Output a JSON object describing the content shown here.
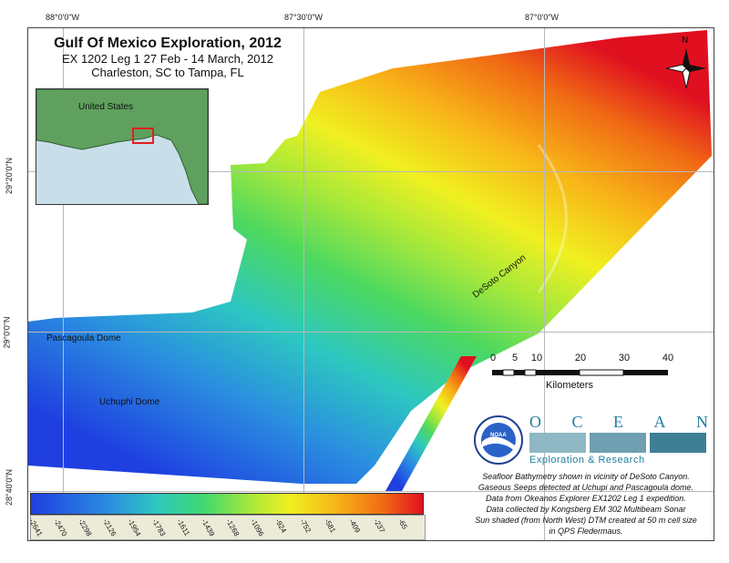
{
  "map": {
    "title": "Gulf Of Mexico Exploration, 2012",
    "subtitle_line1": "EX 1202 Leg 1 27 Feb - 14 March, 2012",
    "subtitle_line2": "Charleston, SC to Tampa, FL",
    "grid_labels_top": [
      "88°0'0\"W",
      "87°30'0\"W",
      "87°0'0\"W"
    ],
    "grid_labels_left": [
      "29°20'0\"N",
      "29°0'0\"N",
      "28°40'0\"N"
    ],
    "north_label": "N",
    "inset_label": "United States",
    "places": {
      "pascagoula": "Pascagoula Dome",
      "uchuphi": "Uchuphi Dome",
      "canyon": "DeSoto Canyon"
    },
    "scale": {
      "ticks": [
        "0",
        "5",
        "10",
        "20",
        "30",
        "40"
      ],
      "units": "Kilometers"
    },
    "logos": {
      "ocean_letters": [
        "O",
        "C",
        "E",
        "A",
        "N"
      ],
      "exploration_text": "Exploration & Research",
      "noaa_text": "NOAA"
    },
    "caption": [
      "Seafloor Bathymetry shown in vicinity of DeSoto Canyon.",
      "Gaseous Seeps detected at Uchupi and Pascagoula dome.",
      "Data from Okeanos Explorer EX1202 Leg 1 expedition.",
      "Data collected by Kongsberg EM 302 Multibeam Sonar",
      "Sun shaded (from North West) DTM created at 50 m cell size",
      "in QPS Fledermaus."
    ],
    "depth_scale": [
      "-2641",
      "-2470",
      "-2298",
      "-2126",
      "-1954",
      "-1783",
      "-1611",
      "-1439",
      "-1268",
      "-1096",
      "-924",
      "-752",
      "-581",
      "-409",
      "-237",
      "-65"
    ],
    "colors": {
      "deep": "#1f3fe0",
      "mid": "#a8e83a",
      "shallow": "#e01020",
      "inset_box": "#e02020"
    }
  }
}
